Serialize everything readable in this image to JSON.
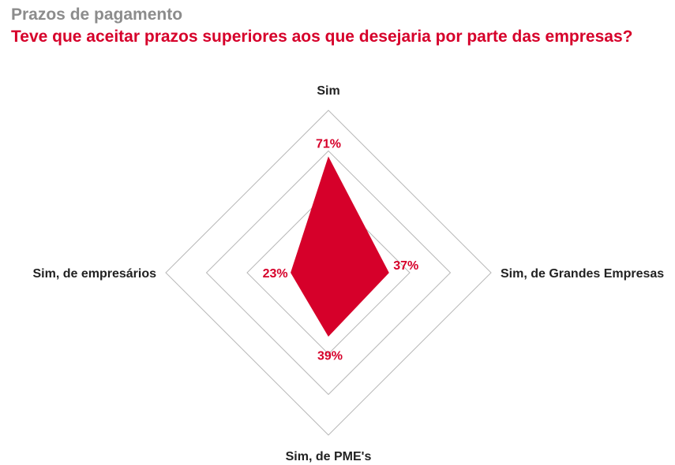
{
  "header": {
    "kicker": "Prazos de pagamento",
    "title": "Teve que aceitar prazos superiores aos que desejaria por parte das empresas?"
  },
  "colors": {
    "accent": "#d6002a",
    "grid": "#b8b8b8",
    "axis_text": "#222222"
  },
  "chart_data": {
    "type": "radar",
    "title": "Teve que aceitar prazos superiores aos que desejaria por parte das empresas?",
    "axes": [
      "Sim",
      "Sim, de Grandes Empresas",
      "Sim, de PME's",
      "Sim, de empresários"
    ],
    "values": [
      71,
      37,
      39,
      23
    ],
    "value_labels": [
      "71%",
      "37%",
      "39%",
      "23%"
    ],
    "unit": "%",
    "range": [
      0,
      100
    ],
    "grid_levels": [
      50,
      75,
      100
    ],
    "grid": true,
    "legend": "none"
  }
}
